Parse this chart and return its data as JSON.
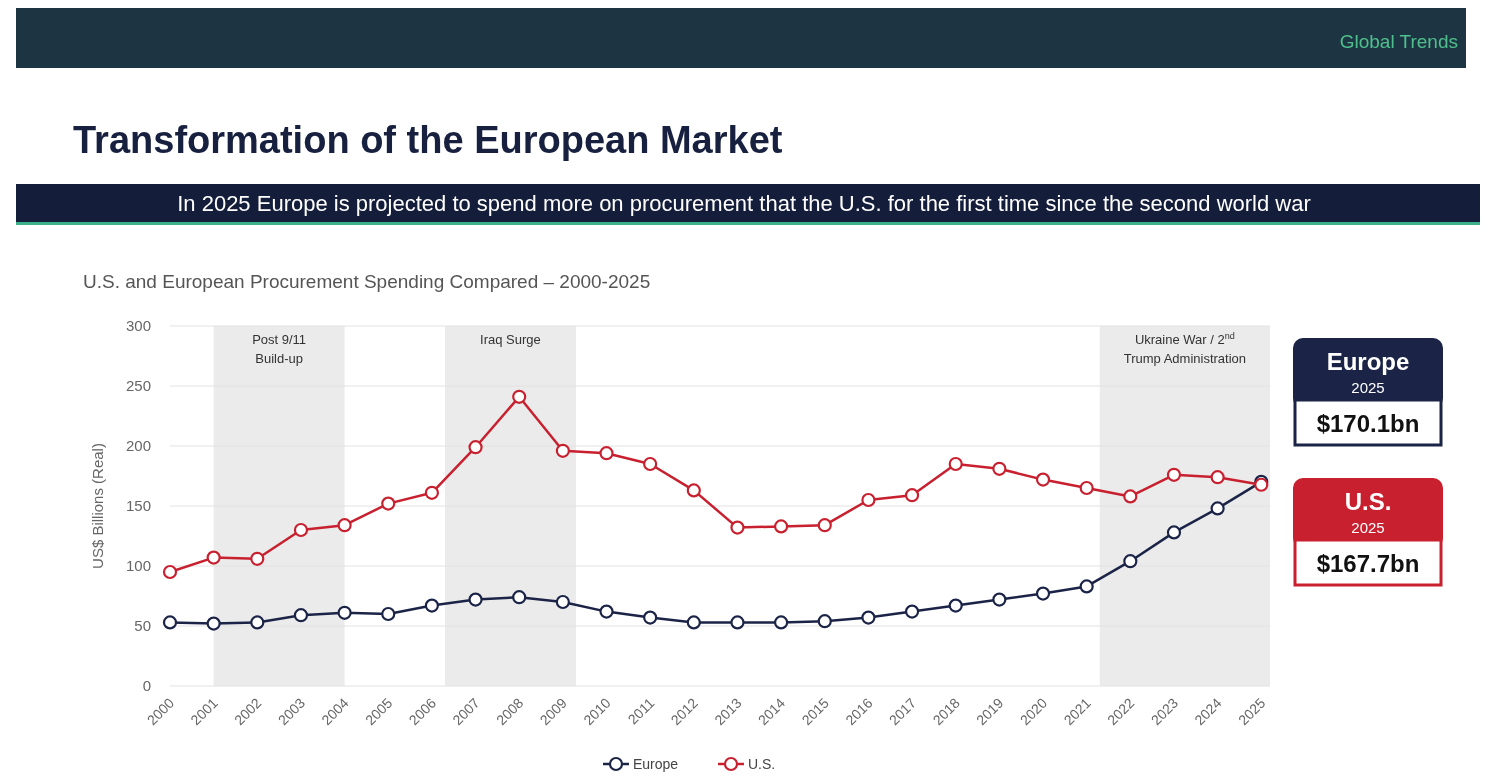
{
  "chart_data": {
    "type": "line",
    "title": "Transformation of the European Market",
    "subtitle": "In 2025 Europe is projected to spend more on procurement that the U.S. for the first time since the second world war",
    "ylabel": "US$ Billions (Real)",
    "annotations": [
      "Global Trends",
      "U.S. and European Procurement Spending Compared – 2000-2025",
      "2025",
      "$170.1bn",
      "2025",
      "$167.7bn"
    ],
    "x": [
      2000,
      2001,
      2002,
      2003,
      2004,
      2005,
      2006,
      2007,
      2008,
      2009,
      2010,
      2011,
      2012,
      2013,
      2014,
      2015,
      2016,
      2017,
      2018,
      2019,
      2020,
      2021,
      2022,
      2023,
      2024,
      2025
    ],
    "series": [
      {
        "name": "Europe",
        "color": "#1b2447",
        "values": [
          53,
          52,
          53,
          59,
          61,
          60,
          67,
          72,
          74,
          70,
          62,
          57,
          53,
          53,
          53,
          54,
          57,
          62,
          67,
          72,
          77,
          83,
          104,
          128,
          148,
          170.1
        ]
      },
      {
        "name": "U.S.",
        "color": "#c8202f",
        "values": [
          95,
          107,
          106,
          130,
          134,
          152,
          161,
          199,
          241,
          196,
          194,
          185,
          163,
          132,
          133,
          134,
          155,
          159,
          185,
          181,
          172,
          165,
          158,
          176,
          174,
          167.7
        ]
      }
    ],
    "xlim": [
      2000,
      2025.2
    ],
    "xticks": [
      2000,
      2001,
      2002,
      2003,
      2004,
      2005,
      2006,
      2007,
      2008,
      2009,
      2010,
      2011,
      2012,
      2013,
      2014,
      2015,
      2016,
      2017,
      2018,
      2019,
      2020,
      2021,
      2022,
      2023,
      2024,
      2025
    ],
    "ylim": [
      0,
      300
    ],
    "yticks": [
      0,
      50,
      100,
      150,
      200,
      250,
      300
    ],
    "bands": [
      {
        "axis": "x",
        "from": 2001,
        "to": 2004,
        "label": "Post 9/11 Build-up",
        "color": "#ebebeb"
      },
      {
        "axis": "x",
        "from": 2006.3,
        "to": 2009.3,
        "label": "Iraq Surge",
        "color": "#ebebeb"
      },
      {
        "axis": "x",
        "from": 2021.3,
        "to": 2025.2,
        "label": "Ukraine War / 2$^{nd}$ Trump Administration",
        "color": "#ebebeb"
      }
    ],
    "grid": "y",
    "legend": "bottom",
    "marker": "circle",
    "line_style": "solid"
  }
}
